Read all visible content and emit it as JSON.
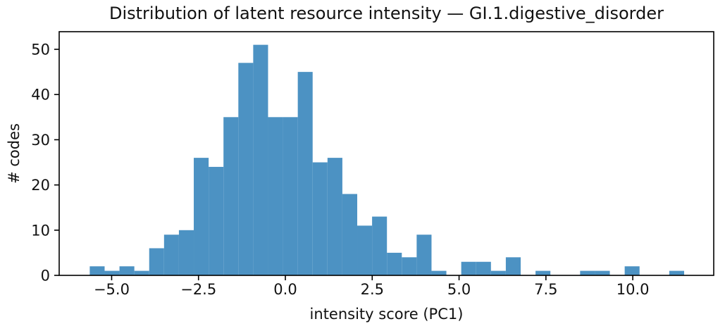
{
  "figure": {
    "background": "#ffffff"
  },
  "chart_data": {
    "type": "bar",
    "subtype": "histogram",
    "title": "Distribution of latent resource intensity — GI.1.digestive_disorder",
    "xlabel": "intensity score (PC1)",
    "ylabel": "# codes",
    "bar_color": "#4c92c3",
    "axis_color": "#000000",
    "text_color": "#111111",
    "bin_start": -5.63,
    "bin_width": 0.4277,
    "counts": [
      2,
      1,
      2,
      1,
      6,
      9,
      10,
      26,
      24,
      35,
      47,
      51,
      35,
      35,
      45,
      25,
      26,
      18,
      11,
      13,
      5,
      4,
      9,
      1,
      0,
      3,
      3,
      1,
      4,
      0,
      1,
      0,
      0,
      1,
      1,
      0,
      2,
      0,
      0,
      1
    ],
    "total_count": 458,
    "xlim": [
      -6.51,
      12.33
    ],
    "ylim": [
      0,
      53.9
    ],
    "xticks": [
      {
        "v": -5.0,
        "label": "−5.0"
      },
      {
        "v": -2.5,
        "label": "−2.5"
      },
      {
        "v": 0.0,
        "label": "0.0"
      },
      {
        "v": 2.5,
        "label": "2.5"
      },
      {
        "v": 5.0,
        "label": "5.0"
      },
      {
        "v": 7.5,
        "label": "7.5"
      },
      {
        "v": 10.0,
        "label": "10.0"
      }
    ],
    "yticks": [
      {
        "v": 0,
        "label": "0"
      },
      {
        "v": 10,
        "label": "10"
      },
      {
        "v": 20,
        "label": "20"
      },
      {
        "v": 30,
        "label": "30"
      },
      {
        "v": 40,
        "label": "40"
      },
      {
        "v": 50,
        "label": "50"
      }
    ],
    "grid": false,
    "legend_position": "none"
  }
}
